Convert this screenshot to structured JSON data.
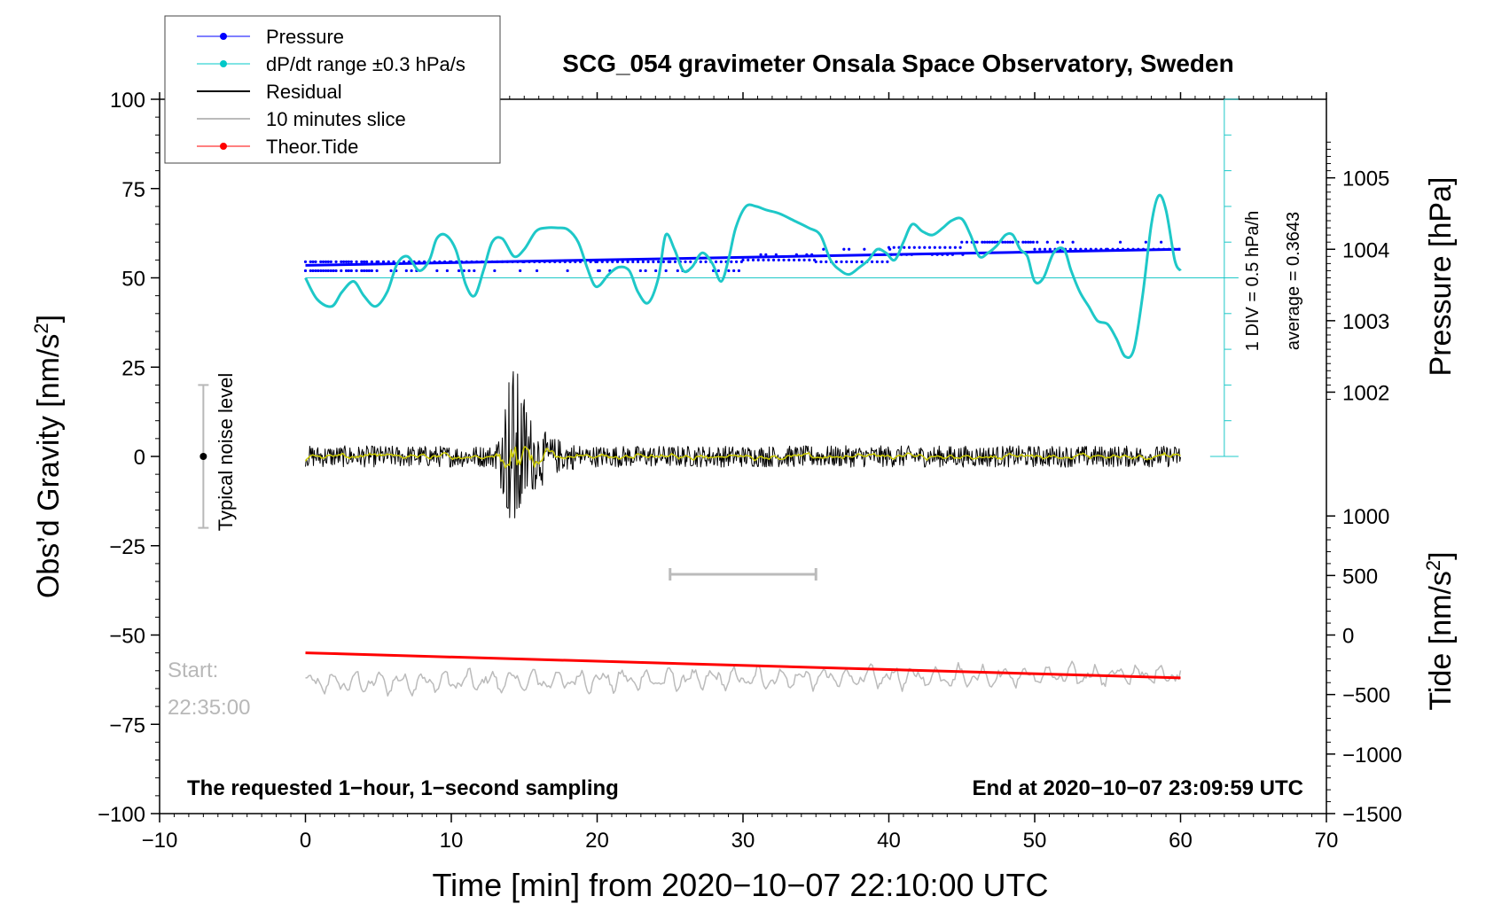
{
  "chart_data": {
    "type": "line",
    "title": "SCG_054 gravimeter Onsala Space Observatory, Sweden",
    "xlabel": "Time [min] from 2020−10−07 22:10:00 UTC",
    "ylabel_left": "Obs’d Gravity [nm/s²]",
    "ylabel_left_main": "Obs’d Gravity [nm/s",
    "ylabel_left_sup": "2",
    "ylabel_left_end": "]",
    "ylabel_pressure": "Pressure [hPa]",
    "ylabel_tide": "Tide [nm/s²]",
    "ylabel_tide_main": "Tide [nm/s",
    "ylabel_tide_sup": "2",
    "ylabel_tide_end": "]",
    "xlim": [
      -10,
      70
    ],
    "ylim": [
      -100,
      100
    ],
    "x_ticks": [
      -10,
      0,
      10,
      20,
      30,
      40,
      50,
      60,
      70
    ],
    "x_tick_labels": [
      "−10",
      "0",
      "10",
      "20",
      "30",
      "40",
      "50",
      "60",
      "70"
    ],
    "y_ticks": [
      100,
      75,
      50,
      25,
      0,
      -25,
      -50,
      -75,
      -100
    ],
    "y_tick_labels": [
      "100",
      "75",
      "50",
      "25",
      "0",
      "−25",
      "−50",
      "−75",
      "−100"
    ],
    "pressure_ticks": [
      1005,
      1004,
      1003,
      1002
    ],
    "pressure_tick_labels": [
      "1005",
      "1004",
      "1003",
      "1002"
    ],
    "pressure_axis_map": {
      "value": 1004,
      "gravity": 58,
      "per_hpa_gravity": 20
    },
    "tide_ticks": [
      1000,
      500,
      0,
      -500,
      -1000,
      -1500
    ],
    "tide_tick_labels": [
      "1000",
      "500",
      "0",
      "−500",
      "−1000",
      "−1500"
    ],
    "tide_axis_map": {
      "value": 0,
      "gravity": -50,
      "per_unit_gravity": 0.03333
    },
    "legend": {
      "position": "top-left, outside",
      "entries": [
        {
          "label": "Pressure",
          "color": "#0000ff",
          "marker": true
        },
        {
          "label": "dP/dt range ±0.3 hPa/s",
          "color": "#00c8c8",
          "marker": true
        },
        {
          "label": "Residual",
          "color": "#000000",
          "marker": false
        },
        {
          "label": "10 minutes slice",
          "color": "#bbbbbb",
          "marker": false
        },
        {
          "label": "Theor.Tide",
          "color": "#ff0000",
          "marker": true
        }
      ]
    },
    "annotations": {
      "noise_label": "Typical noise level",
      "noise_range": [
        -20,
        20
      ],
      "noise_x": -7,
      "scale_div": "1 DIV = 0.5 hPa/h",
      "scale_avg": "average = 0.3643",
      "scale_x": 63,
      "scale_range": [
        0,
        100
      ],
      "scale_ref_y": 50,
      "scale_ticks": [
        0,
        10,
        20,
        30,
        40,
        50,
        60,
        70,
        80,
        90,
        100
      ],
      "start_label": "Start:",
      "start_time": "22:35:00",
      "bottom_left": "The requested 1−hour, 1−second sampling",
      "bottom_right": "End at 2020−10−07 23:09:59 UTC",
      "slice_bar": [
        25,
        35,
        -33
      ]
    },
    "series": {
      "pressure": {
        "name": "Pressure",
        "color": "#0000ff",
        "main_line": [
          {
            "x": 0,
            "y": 53.5
          },
          {
            "x": 60,
            "y": 58
          }
        ],
        "x": [
          0,
          0,
          0,
          5,
          5,
          10,
          10,
          15,
          15,
          20,
          20,
          25,
          25,
          30,
          30,
          35,
          35,
          40,
          40,
          45,
          45,
          50,
          50,
          55,
          55,
          60
        ],
        "y": [
          52,
          54.5,
          54.5,
          52,
          54.5,
          52,
          54.5,
          52,
          54.5,
          52,
          54.5,
          52,
          54.5,
          52,
          55,
          56.5,
          54.5,
          58,
          58.5,
          56.5,
          60,
          60,
          58,
          60,
          58,
          60
        ]
      },
      "dpdt": {
        "name": "dP/dt range ±0.3 hPa/s",
        "color": "#1ec8c8",
        "x": [
          0,
          0.8,
          1.8,
          2.5,
          3.3,
          4,
          4.8,
          5.6,
          6.3,
          7,
          7.8,
          8.5,
          9,
          9.6,
          10.3,
          11,
          11.6,
          12.2,
          12.8,
          13.5,
          14.3,
          15,
          15.8,
          16.5,
          17.3,
          18,
          18.7,
          19.3,
          19.8,
          20.2,
          20.8,
          21.5,
          22.2,
          22.8,
          23.5,
          24.2,
          24.7,
          25.3,
          25.9,
          26.5,
          27.2,
          27.9,
          28.5,
          29,
          29.5,
          30.2,
          30.9,
          31.6,
          32.5,
          33.5,
          34.5,
          35.3,
          36,
          36.7,
          37.3,
          38,
          38.6,
          39.2,
          39.8,
          40.4,
          41,
          41.6,
          42.3,
          43,
          43.7,
          44.3,
          45,
          45.6,
          46.2,
          46.8,
          47.4,
          48,
          48.5,
          49,
          49.5,
          50,
          50.6,
          51.3,
          52,
          52.5,
          53.1,
          53.7,
          54.3,
          55,
          55.6,
          56.2,
          56.8,
          57.4,
          58,
          58.5,
          59,
          59.6,
          60
        ],
        "y": [
          50,
          44,
          42,
          46,
          49,
          45,
          42,
          46,
          54,
          56,
          52,
          55,
          61,
          62,
          58,
          48,
          45,
          52,
          60,
          61,
          56,
          58,
          63,
          64,
          64,
          63.5,
          60,
          53,
          48,
          48,
          51,
          53,
          52,
          46,
          43,
          50,
          62,
          58,
          52,
          53,
          57,
          54,
          49,
          55,
          64,
          70,
          70,
          69,
          68,
          66,
          64,
          62,
          55,
          52,
          51,
          53,
          55,
          58,
          57,
          55,
          60,
          65,
          63,
          62,
          64,
          66,
          66.5,
          62,
          56,
          57,
          59,
          62,
          62,
          58,
          56,
          49,
          50,
          57,
          58,
          52,
          46,
          42,
          38,
          37,
          33,
          28,
          30,
          45,
          65,
          73,
          69,
          55,
          52
        ]
      },
      "residual": {
        "name": "Residual",
        "color": "#000000",
        "base_noise": 3,
        "burst": {
          "start": 13,
          "peak": 14.3,
          "end": 19,
          "max_amplitude": 33
        }
      },
      "smoothed": {
        "name": "smoothed residual",
        "color": "#cccc00"
      },
      "slice": {
        "name": "10 minutes slice",
        "color": "#bbbbbb",
        "center_start": -63.5,
        "center_end": -61,
        "amplitude": 3.5
      },
      "tide": {
        "name": "Theor.Tide",
        "color": "#ff0000",
        "x": [
          0,
          60
        ],
        "y": [
          -55,
          -62
        ]
      }
    }
  }
}
